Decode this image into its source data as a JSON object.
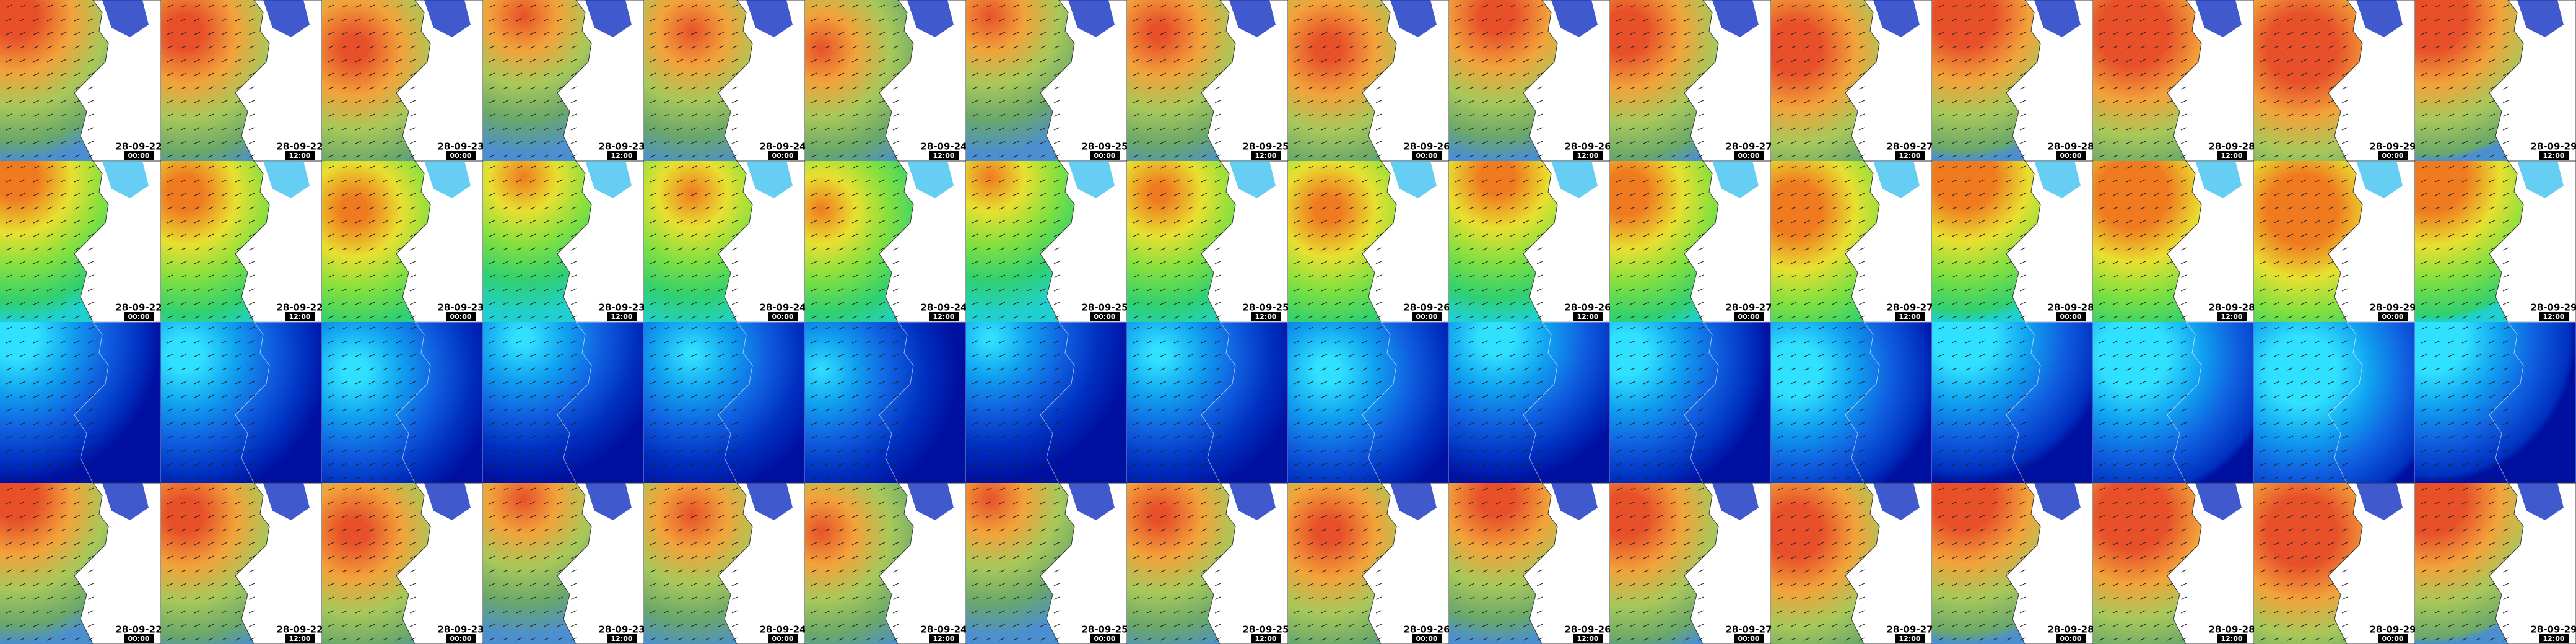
{
  "columns": [
    {
      "date": "28-09-22",
      "time": "00:00"
    },
    {
      "date": "28-09-22",
      "time": "12:00"
    },
    {
      "date": "28-09-23",
      "time": "00:00"
    },
    {
      "date": "28-09-23",
      "time": "12:00"
    },
    {
      "date": "28-09-24",
      "time": "00:00"
    },
    {
      "date": "28-09-24",
      "time": "12:00"
    },
    {
      "date": "28-09-25",
      "time": "00:00"
    },
    {
      "date": "28-09-25",
      "time": "12:00"
    },
    {
      "date": "28-09-26",
      "time": "00:00"
    },
    {
      "date": "28-09-26",
      "time": "12:00"
    },
    {
      "date": "28-09-27",
      "time": "00:00"
    },
    {
      "date": "28-09-27",
      "time": "12:00"
    },
    {
      "date": "28-09-28",
      "time": "00:00"
    },
    {
      "date": "28-09-28",
      "time": "12:00"
    },
    {
      "date": "28-09-29",
      "time": "00:00"
    },
    {
      "date": "28-09-29",
      "time": "12:00"
    }
  ]
}
